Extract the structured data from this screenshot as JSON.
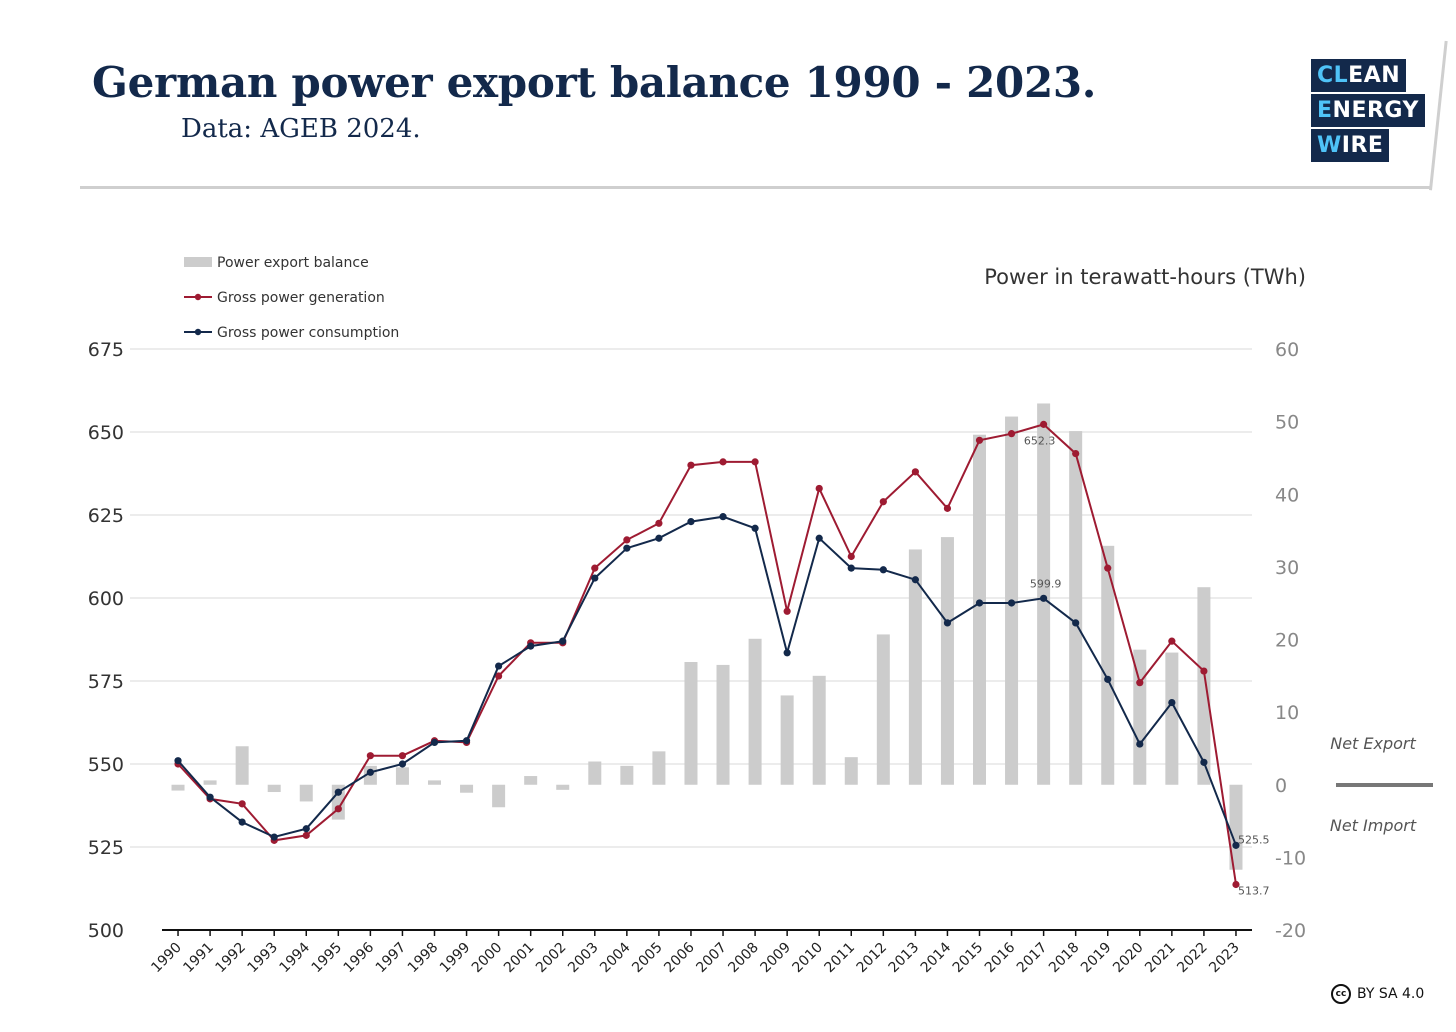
{
  "header": {
    "title": "German power export balance 1990 - 2023.",
    "subtitle": "Data: AGEB 2024."
  },
  "logo": {
    "line1_hl": "CL",
    "line1": "EAN",
    "line2_hl": "E",
    "line2": "NERGY",
    "line3_hl": "W",
    "line3": "IRE"
  },
  "license": {
    "icon": "cc-icon",
    "text": "BY SA 4.0",
    "cc_label": "cc"
  },
  "chart_data": {
    "type": "bar+line",
    "title": "German power export balance 1990 - 2023.",
    "unit_label": "Power in terawatt-hours (TWh)",
    "categories": [
      "1990",
      "1991",
      "1992",
      "1993",
      "1994",
      "1995",
      "1996",
      "1997",
      "1998",
      "1999",
      "2000",
      "2001",
      "2002",
      "2003",
      "2004",
      "2005",
      "2006",
      "2007",
      "2008",
      "2009",
      "2010",
      "2011",
      "2012",
      "2013",
      "2014",
      "2015",
      "2016",
      "2017",
      "2018",
      "2019",
      "2020",
      "2021",
      "2022",
      "2023"
    ],
    "left_axis": {
      "ylim": [
        500,
        675
      ],
      "ticks": [
        500,
        525,
        550,
        575,
        600,
        625,
        650,
        675
      ]
    },
    "right_axis": {
      "ylim": [
        -20,
        60
      ],
      "ticks": [
        -20,
        -10,
        0,
        10,
        20,
        30,
        40,
        50,
        60
      ]
    },
    "legend": {
      "placement": "top-left"
    },
    "series": [
      {
        "name": "Power export balance",
        "axis": "right",
        "kind": "bar",
        "color": "#cccccc",
        "values": [
          -0.8,
          0.6,
          5.3,
          -1.0,
          -2.3,
          -4.8,
          2.6,
          2.4,
          0.6,
          -1.1,
          -3.1,
          1.2,
          -0.7,
          3.2,
          2.6,
          4.6,
          16.9,
          16.5,
          20.1,
          12.3,
          15.0,
          3.8,
          20.7,
          32.4,
          34.1,
          48.2,
          50.7,
          52.5,
          48.7,
          32.9,
          18.6,
          18.2,
          27.2,
          -11.7
        ]
      },
      {
        "name": "Gross power generation",
        "axis": "left",
        "kind": "line",
        "color": "#9e1b32",
        "values": [
          550,
          539.5,
          538,
          527,
          528.5,
          536.5,
          552.5,
          552.5,
          557,
          556.5,
          576.5,
          586.5,
          586.5,
          609,
          617.5,
          622.5,
          640,
          641,
          641,
          596,
          633,
          612.5,
          629,
          638,
          627,
          647.5,
          649.5,
          652.3,
          643.5,
          609,
          574.5,
          587,
          578,
          513.7
        ]
      },
      {
        "name": "Gross power consumption",
        "axis": "left",
        "kind": "line",
        "color": "#13294b",
        "values": [
          551,
          540,
          532.5,
          528,
          530.5,
          541.5,
          547.5,
          550,
          556.5,
          557,
          579.5,
          585.5,
          587,
          606,
          615,
          618,
          623,
          624.5,
          621,
          583.5,
          618,
          609,
          608.5,
          605.5,
          592.5,
          598.5,
          598.5,
          599.9,
          592.5,
          575.5,
          556,
          568.5,
          550.5,
          525.5
        ]
      }
    ],
    "annotations": [
      {
        "text": "652.3",
        "year": "2017",
        "value": 652.3,
        "axis": "left"
      },
      {
        "text": "599.9",
        "year": "2017",
        "value": 599.9,
        "axis": "left"
      },
      {
        "text": "525.5",
        "year": "2023",
        "value": 525.5,
        "axis": "left"
      },
      {
        "text": "513.7",
        "year": "2023",
        "value": 513.7,
        "axis": "left"
      }
    ],
    "side_labels": {
      "net_export": "Net Export",
      "net_import": "Net Import"
    }
  }
}
